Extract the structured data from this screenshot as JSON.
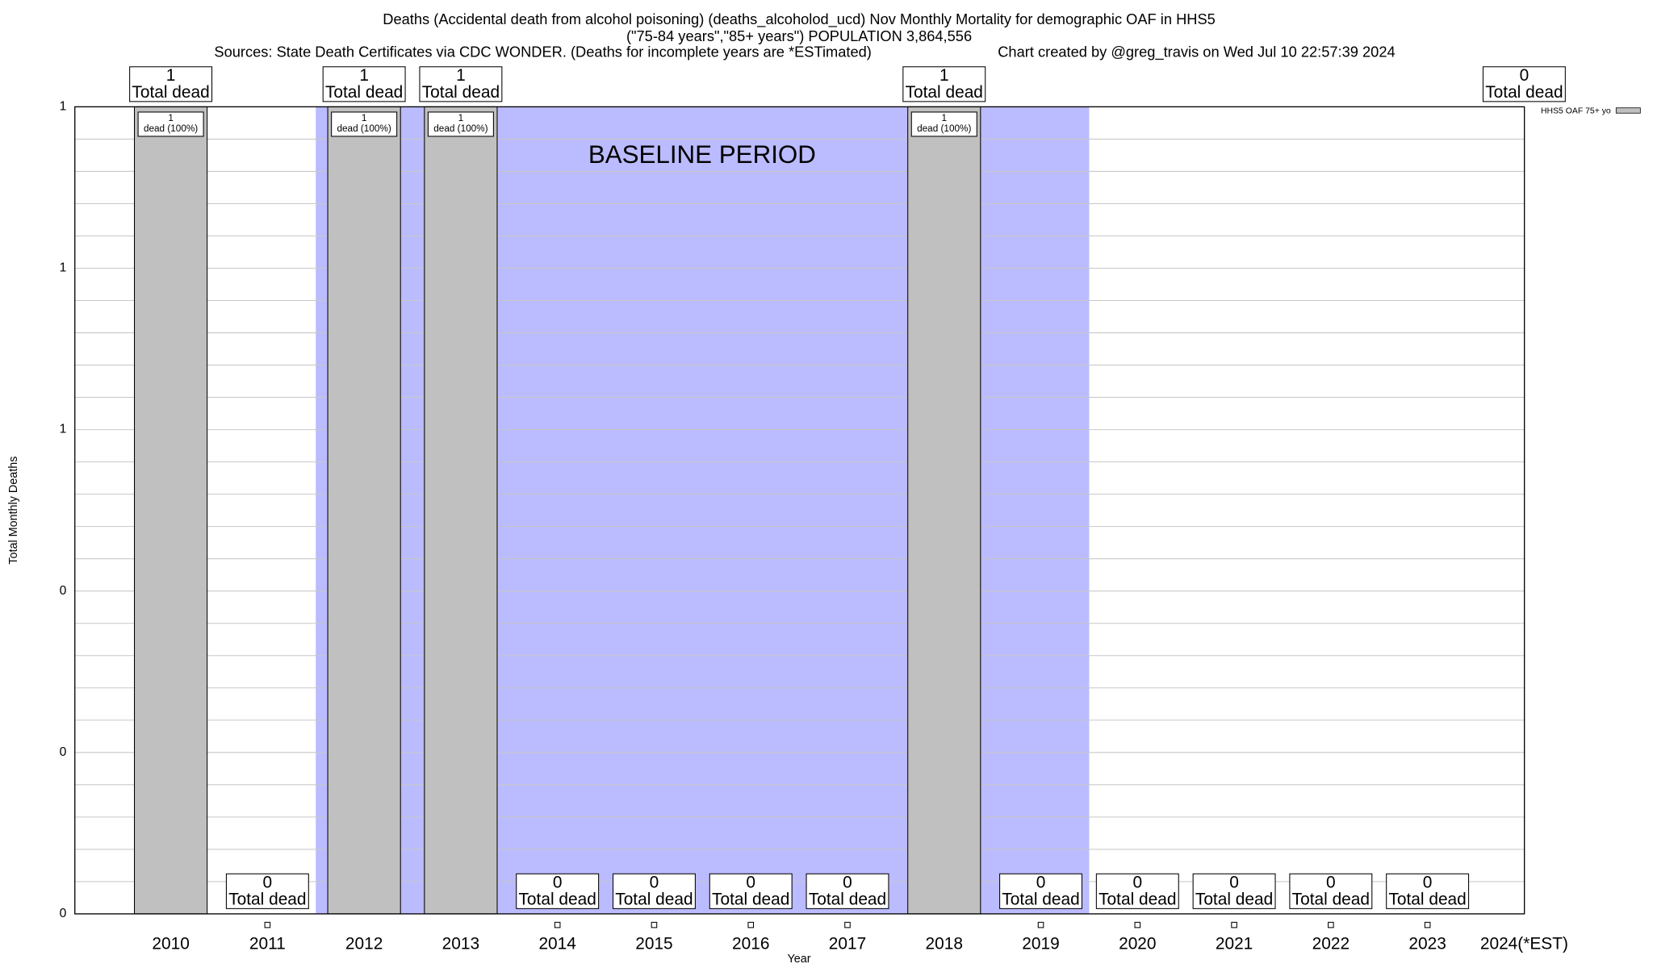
{
  "chart_data": {
    "type": "bar",
    "title": "Deaths (Accidental death from alcohol poisoning) (deaths_alcoholod_ucd) Nov Monthly Mortality for demographic OAF in HHS5",
    "subtitle": "(\"75-84 years\",\"85+ years\") POPULATION 3,864,556",
    "source": "Sources: State Death Certificates via CDC WONDER. (Deaths for incomplete years are *ESTimated)",
    "credit": "Chart created by @greg_travis on Wed Jul 10 22:57:39 2024",
    "x_label": "Year",
    "y_label": "Total Monthly Deaths",
    "categories": [
      "2010",
      "2011",
      "2012",
      "2013",
      "2014",
      "2015",
      "2016",
      "2017",
      "2018",
      "2019",
      "2020",
      "2021",
      "2022",
      "2023",
      "2024(*EST)"
    ],
    "series": [
      {
        "name": "HHS5 OAF 75+ yo",
        "color": "#c0c0c0",
        "values": [
          1,
          0,
          1,
          1,
          0,
          0,
          0,
          0,
          1,
          0,
          0,
          0,
          0,
          0,
          0
        ]
      }
    ],
    "total_label": "Total dead",
    "segment_label": "dead (100%)",
    "ylim": [
      0,
      1
    ],
    "yticks": [
      0,
      {
        "value": 0.2,
        "label": "0"
      },
      {
        "value": 0.4,
        "label": "0"
      },
      {
        "value": 0.6,
        "label": "1"
      },
      {
        "value": 0.8,
        "label": "1"
      },
      1
    ],
    "y_minor_ticks": [
      0.04,
      0.08,
      0.12,
      0.16,
      0.24,
      0.28,
      0.32,
      0.36,
      0.44,
      0.48,
      0.52,
      0.56,
      0.64,
      0.68,
      0.72,
      0.76,
      0.84,
      0.88,
      0.92,
      0.96
    ],
    "grid": true,
    "baseline": {
      "label": "BASELINE PERIOD",
      "from": "2012",
      "to": "2019",
      "color": "#bbbbff"
    }
  }
}
